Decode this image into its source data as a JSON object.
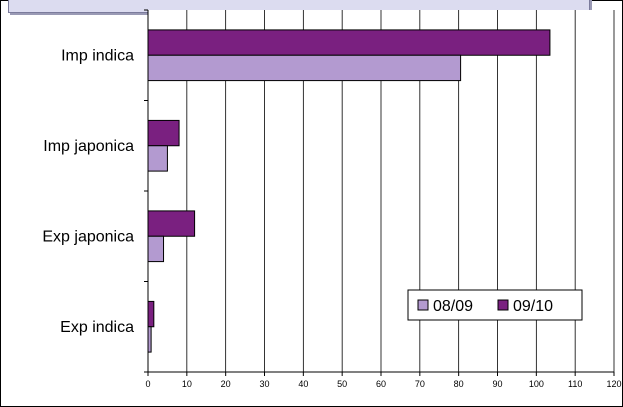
{
  "chart_data": {
    "type": "bar",
    "orientation": "horizontal",
    "categories": [
      "Imp indica",
      "Imp japonica",
      "Exp japonica",
      "Exp indica"
    ],
    "series": [
      {
        "name": "08/09",
        "values": [
          80.5,
          5,
          4,
          0.8
        ],
        "color": "#b39ad0"
      },
      {
        "name": "09/10",
        "values": [
          103.5,
          8,
          12,
          1.5
        ],
        "color": "#7a2080"
      }
    ],
    "xlim": [
      0,
      120
    ],
    "x_ticks": [
      0,
      10,
      20,
      30,
      40,
      50,
      60,
      70,
      80,
      90,
      100,
      110,
      120
    ],
    "grid": "vertical",
    "legend_position": "bottom-right",
    "title": "",
    "xlabel": "",
    "ylabel": ""
  }
}
